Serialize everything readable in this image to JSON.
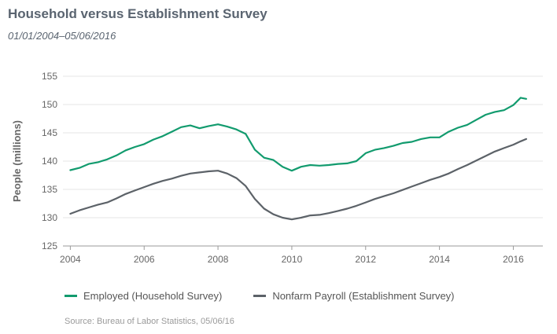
{
  "title": "Household versus Establishment Survey",
  "subtitle": "01/01/2004–05/06/2016",
  "source": "Source:  Bureau of Labor Statistics, 05/06/16",
  "chart_data": {
    "type": "line",
    "ylabel": "People (millions)",
    "xlabel": "",
    "xlim": [
      2003.8,
      2016.8
    ],
    "ylim": [
      125,
      155
    ],
    "yticks": [
      125,
      130,
      135,
      140,
      145,
      150,
      155
    ],
    "xticks": [
      2004,
      2006,
      2008,
      2010,
      2012,
      2014,
      2016
    ],
    "grid": "horizontal",
    "legend_position": "bottom",
    "series": [
      {
        "name": "Employed (Household Survey)",
        "color": "#129b6e",
        "x": [
          2004.0,
          2004.25,
          2004.5,
          2004.75,
          2005.0,
          2005.25,
          2005.5,
          2005.75,
          2006.0,
          2006.25,
          2006.5,
          2006.75,
          2007.0,
          2007.25,
          2007.5,
          2007.75,
          2008.0,
          2008.25,
          2008.5,
          2008.75,
          2009.0,
          2009.25,
          2009.5,
          2009.75,
          2010.0,
          2010.25,
          2010.5,
          2010.75,
          2011.0,
          2011.25,
          2011.5,
          2011.75,
          2012.0,
          2012.25,
          2012.5,
          2012.75,
          2013.0,
          2013.25,
          2013.5,
          2013.75,
          2014.0,
          2014.25,
          2014.5,
          2014.75,
          2015.0,
          2015.25,
          2015.5,
          2015.75,
          2016.0,
          2016.2,
          2016.35
        ],
        "values": [
          138.4,
          138.8,
          139.5,
          139.8,
          140.3,
          141.0,
          141.9,
          142.5,
          143.0,
          143.8,
          144.4,
          145.2,
          146.0,
          146.3,
          145.8,
          146.2,
          146.5,
          146.1,
          145.6,
          144.8,
          142.0,
          140.6,
          140.2,
          139.0,
          138.3,
          139.0,
          139.3,
          139.2,
          139.3,
          139.5,
          139.6,
          140.0,
          141.4,
          142.0,
          142.3,
          142.7,
          143.2,
          143.4,
          143.9,
          144.2,
          144.2,
          145.2,
          145.9,
          146.4,
          147.3,
          148.2,
          148.7,
          149.0,
          149.9,
          151.2,
          151.0
        ]
      },
      {
        "name": "Nonfarm Payroll (Establishment Survey)",
        "color": "#5c6268",
        "x": [
          2004.0,
          2004.25,
          2004.5,
          2004.75,
          2005.0,
          2005.25,
          2005.5,
          2005.75,
          2006.0,
          2006.25,
          2006.5,
          2006.75,
          2007.0,
          2007.25,
          2007.5,
          2007.75,
          2008.0,
          2008.25,
          2008.5,
          2008.75,
          2009.0,
          2009.25,
          2009.5,
          2009.75,
          2010.0,
          2010.25,
          2010.5,
          2010.75,
          2011.0,
          2011.25,
          2011.5,
          2011.75,
          2012.0,
          2012.25,
          2012.5,
          2012.75,
          2013.0,
          2013.25,
          2013.5,
          2013.75,
          2014.0,
          2014.25,
          2014.5,
          2014.75,
          2015.0,
          2015.25,
          2015.5,
          2015.75,
          2016.0,
          2016.2,
          2016.35
        ],
        "values": [
          130.7,
          131.3,
          131.8,
          132.3,
          132.7,
          133.4,
          134.2,
          134.8,
          135.4,
          136.0,
          136.5,
          136.9,
          137.4,
          137.8,
          138.0,
          138.2,
          138.3,
          137.8,
          137.0,
          135.6,
          133.3,
          131.6,
          130.6,
          130.0,
          129.7,
          130.0,
          130.4,
          130.5,
          130.8,
          131.2,
          131.6,
          132.1,
          132.7,
          133.3,
          133.8,
          134.3,
          134.9,
          135.5,
          136.1,
          136.7,
          137.2,
          137.8,
          138.6,
          139.3,
          140.1,
          140.9,
          141.7,
          142.3,
          142.9,
          143.5,
          143.9
        ]
      }
    ]
  }
}
